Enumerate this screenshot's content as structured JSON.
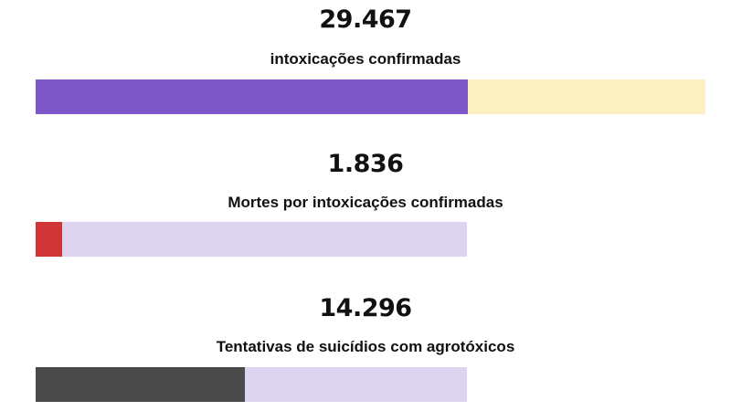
{
  "chart_data": {
    "type": "bar",
    "items": [
      {
        "value_text": "29.467",
        "label": "intoxicações confirmadas",
        "value": 29467,
        "fill_fraction": 0.645,
        "fill_color": "#7e57c8",
        "track_color": "#fdf1c4"
      },
      {
        "value_text": "1.836",
        "label": "Mortes por intoxicações confirmadas",
        "value": 1836,
        "fill_fraction": 0.062,
        "fill_color": "#d03434",
        "track_color": "#ddd4ef"
      },
      {
        "value_text": "14.296",
        "label": "Tentativas de suicídios com agrotóxicos",
        "value": 14296,
        "fill_fraction": 0.485,
        "fill_color": "#4a4a4a",
        "track_color": "#ddd4ef"
      }
    ]
  }
}
